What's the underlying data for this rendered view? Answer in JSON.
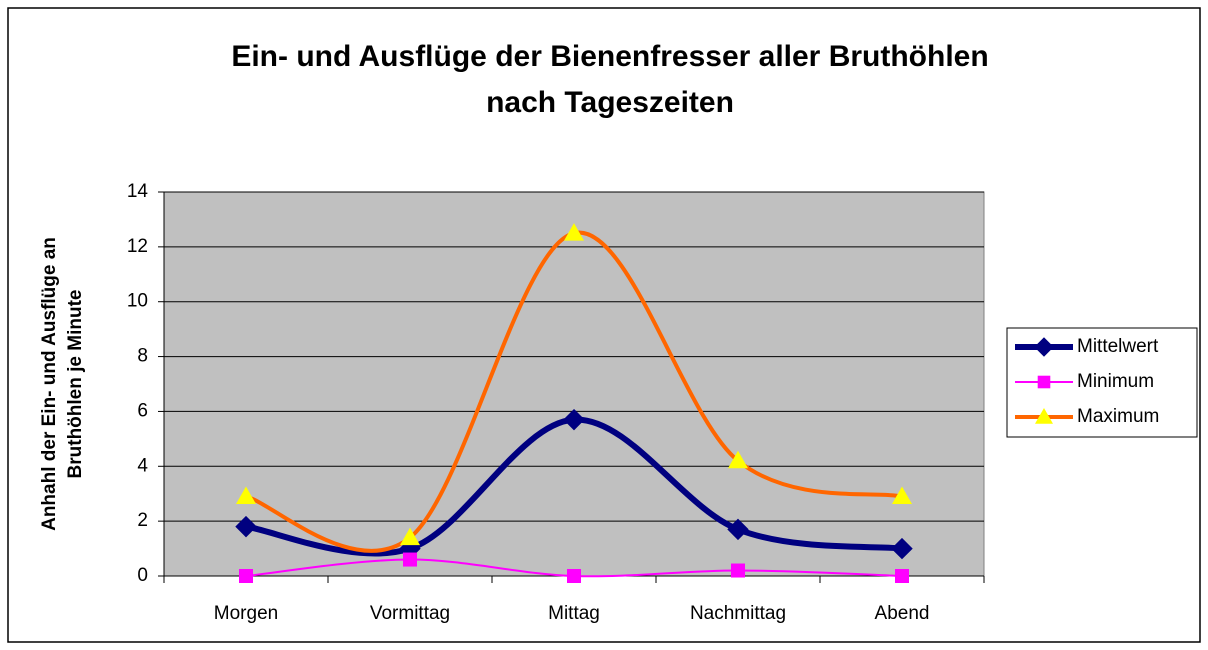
{
  "chart_data": {
    "type": "line",
    "smooth": true,
    "title": [
      "Ein- und Ausflüge der Bienenfresser aller Bruthöhlen",
      "nach Tageszeiten"
    ],
    "y_label": [
      "Anhahl der Ein- und Ausflüge an",
      "Bruthöhlen je Minute"
    ],
    "categories": [
      "Morgen",
      "Vormittag",
      "Mittag",
      "Nachmittag",
      "Abend"
    ],
    "series": [
      {
        "name": "Mittelwert",
        "color": "#000080",
        "marker": "diamond",
        "marker_color": "#000080",
        "line_width": 6,
        "values": [
          1.8,
          1.0,
          5.7,
          1.7,
          1.0
        ]
      },
      {
        "name": "Minimum",
        "color": "#ff00ff",
        "marker": "square",
        "marker_color": "#ff00ff",
        "line_width": 2,
        "values": [
          0,
          0.6,
          0,
          0.2,
          0
        ]
      },
      {
        "name": "Maximum",
        "color": "#ff6600",
        "marker": "triangle",
        "marker_color": "#ffff00",
        "line_width": 4,
        "values": [
          2.9,
          1.4,
          12.5,
          4.2,
          2.9
        ]
      }
    ],
    "ylim": [
      0,
      14
    ],
    "yticks": [
      0,
      2,
      4,
      6,
      8,
      10,
      12,
      14
    ],
    "grid": true,
    "plot_background": "#c0c0c0",
    "legend": "right"
  }
}
